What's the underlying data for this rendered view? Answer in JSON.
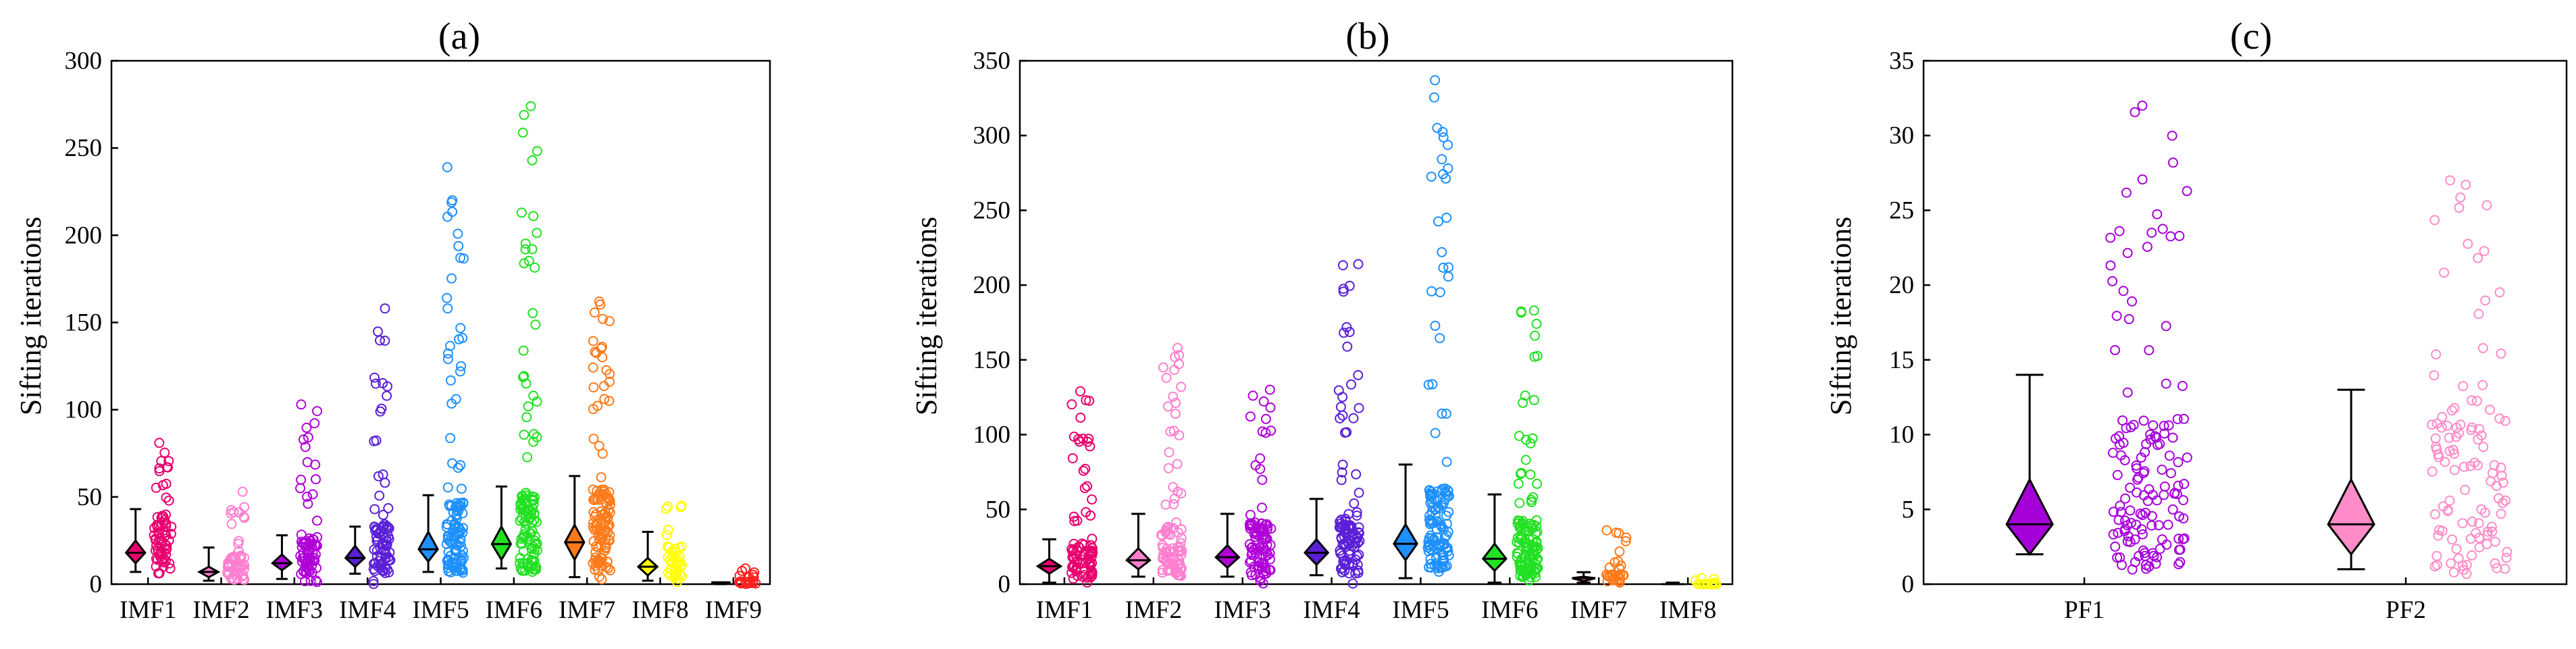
{
  "chart_data": [
    {
      "type": "box-scatter",
      "title": "(a)",
      "ylabel": "Sifting iterations",
      "xlabel": "",
      "ylim": [
        0,
        300
      ],
      "yticks": [
        0,
        50,
        100,
        150,
        200,
        250,
        300
      ],
      "categories": [
        "IMF1",
        "IMF2",
        "IMF3",
        "IMF4",
        "IMF5",
        "IMF6",
        "IMF7",
        "IMF8",
        "IMF9"
      ],
      "series": [
        {
          "name": "IMF1",
          "color": "#E8006E",
          "min": 7,
          "max": 43,
          "median": 18,
          "q1": 12,
          "q3": 25,
          "points_max": 81,
          "n": 70
        },
        {
          "name": "IMF2",
          "color": "#FF7FCF",
          "min": 2,
          "max": 21,
          "median": 7,
          "q1": 4,
          "q3": 10,
          "points_max": 53,
          "n": 55
        },
        {
          "name": "IMF3",
          "color": "#B000D8",
          "min": 3,
          "max": 28,
          "median": 12,
          "q1": 8,
          "q3": 17,
          "points_max": 103,
          "n": 75
        },
        {
          "name": "IMF4",
          "color": "#5A1FD6",
          "min": 6,
          "max": 33,
          "median": 15,
          "q1": 10,
          "q3": 22,
          "points_max": 158,
          "n": 80
        },
        {
          "name": "IMF5",
          "color": "#1E90FF",
          "min": 7,
          "max": 51,
          "median": 20,
          "q1": 13,
          "q3": 30,
          "points_max": 239,
          "n": 120
        },
        {
          "name": "IMF6",
          "color": "#22E022",
          "min": 9,
          "max": 56,
          "median": 23,
          "q1": 14,
          "q3": 33,
          "points_max": 274,
          "n": 120
        },
        {
          "name": "IMF7",
          "color": "#FF7A1A",
          "min": 4,
          "max": 62,
          "median": 24,
          "q1": 14,
          "q3": 34,
          "points_max": 162,
          "n": 120
        },
        {
          "name": "IMF8",
          "color": "#FFFF00",
          "min": 2,
          "max": 30,
          "median": 10,
          "q1": 5,
          "q3": 15,
          "points_max": 45,
          "n": 40
        },
        {
          "name": "IMF9",
          "color": "#FF2020",
          "min": 0,
          "max": 1,
          "median": 1,
          "q1": 0,
          "q3": 1,
          "points_max": 9,
          "n": 20
        }
      ]
    },
    {
      "type": "box-scatter",
      "title": "(b)",
      "ylabel": "Sifting iterations",
      "xlabel": "",
      "ylim": [
        0,
        350
      ],
      "yticks": [
        0,
        50,
        100,
        150,
        200,
        250,
        300,
        350
      ],
      "categories": [
        "IMF1",
        "IMF2",
        "IMF3",
        "IMF4",
        "IMF5",
        "IMF6",
        "IMF7",
        "IMF8"
      ],
      "series": [
        {
          "name": "IMF1",
          "color": "#E8006E",
          "min": 1,
          "max": 30,
          "median": 12,
          "q1": 7,
          "q3": 17,
          "points_max": 129,
          "n": 90
        },
        {
          "name": "IMF2",
          "color": "#FF7FCF",
          "min": 5,
          "max": 47,
          "median": 16,
          "q1": 10,
          "q3": 24,
          "points_max": 158,
          "n": 90
        },
        {
          "name": "IMF3",
          "color": "#B000D8",
          "min": 5,
          "max": 47,
          "median": 18,
          "q1": 11,
          "q3": 26,
          "points_max": 130,
          "n": 90
        },
        {
          "name": "IMF4",
          "color": "#5A1FD6",
          "min": 6,
          "max": 57,
          "median": 21,
          "q1": 13,
          "q3": 30,
          "points_max": 214,
          "n": 100
        },
        {
          "name": "IMF5",
          "color": "#1E90FF",
          "min": 4,
          "max": 80,
          "median": 27,
          "q1": 16,
          "q3": 40,
          "points_max": 337,
          "n": 130
        },
        {
          "name": "IMF6",
          "color": "#22E022",
          "min": 1,
          "max": 60,
          "median": 17,
          "q1": 9,
          "q3": 27,
          "points_max": 183,
          "n": 120
        },
        {
          "name": "IMF7",
          "color": "#FF7A1A",
          "min": 1,
          "max": 8,
          "median": 4,
          "q1": 2,
          "q3": 5,
          "points_max": 36,
          "n": 30
        },
        {
          "name": "IMF8",
          "color": "#FFFF00",
          "min": 0,
          "max": 1,
          "median": 0,
          "q1": 0,
          "q3": 0,
          "points_max": 4,
          "n": 15
        }
      ]
    },
    {
      "type": "box-scatter",
      "title": "(c)",
      "ylabel": "Sifting iterations",
      "xlabel": "",
      "ylim": [
        0,
        35
      ],
      "yticks": [
        0,
        5,
        10,
        15,
        20,
        25,
        30,
        35
      ],
      "categories": [
        "PF1",
        "PF2"
      ],
      "series": [
        {
          "name": "PF1",
          "color": "#A600D9",
          "min": 2,
          "max": 14,
          "median": 4,
          "q1": 2,
          "q3": 7,
          "points_max": 32,
          "n": 140
        },
        {
          "name": "PF2",
          "color": "#FF8CC8",
          "min": 1,
          "max": 13,
          "median": 4,
          "q1": 2,
          "q3": 7,
          "points_max": 27,
          "n": 110
        }
      ]
    }
  ]
}
